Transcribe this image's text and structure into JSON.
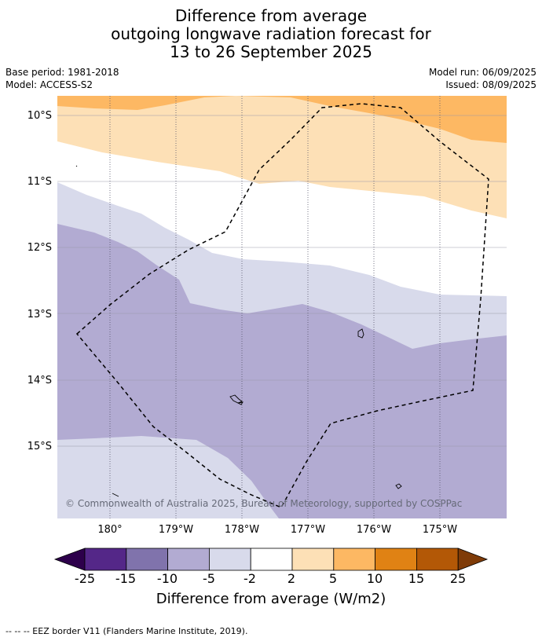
{
  "title": {
    "line1": "Difference from average",
    "line2": "outgoing longwave radiation forecast for",
    "line3": "13 to 26 September 2025"
  },
  "meta": {
    "base_period": "Base period: 1981-2018",
    "model": "Model: ACCESS-S2",
    "model_run": "Model run: 06/09/2025",
    "issued": "Issued: 08/09/2025"
  },
  "map": {
    "lat_labels": [
      "10°S",
      "11°S",
      "12°S",
      "13°S",
      "14°S",
      "15°S"
    ],
    "lon_labels": [
      "180°",
      "179°W",
      "178°W",
      "177°W",
      "176°W",
      "175°W"
    ],
    "copyright": "© Commonwealth of Australia 2025, Bureau of Meteorology, supported by COSPPac",
    "colors": {
      "pos_2_5": "#fde0b6",
      "pos_5_10": "#fdb863",
      "neg_2_5": "#d8daeb",
      "neg_5_10": "#b2abd2",
      "zero": "#ffffff"
    }
  },
  "colorbar": {
    "ticks": [
      "-25",
      "-15",
      "-10",
      "-5",
      "-2",
      "2",
      "5",
      "10",
      "15",
      "25"
    ],
    "colors": [
      "#2d004b",
      "#542788",
      "#8073ac",
      "#b2abd2",
      "#d8daeb",
      "#ffffff",
      "#fde0b6",
      "#fdb863",
      "#e08214",
      "#b35806",
      "#7f3b08"
    ],
    "title": "Difference from average (W/m2)"
  },
  "footer": "--  --  -- EEZ border V11 (Flanders Marine Institute, 2019)."
}
